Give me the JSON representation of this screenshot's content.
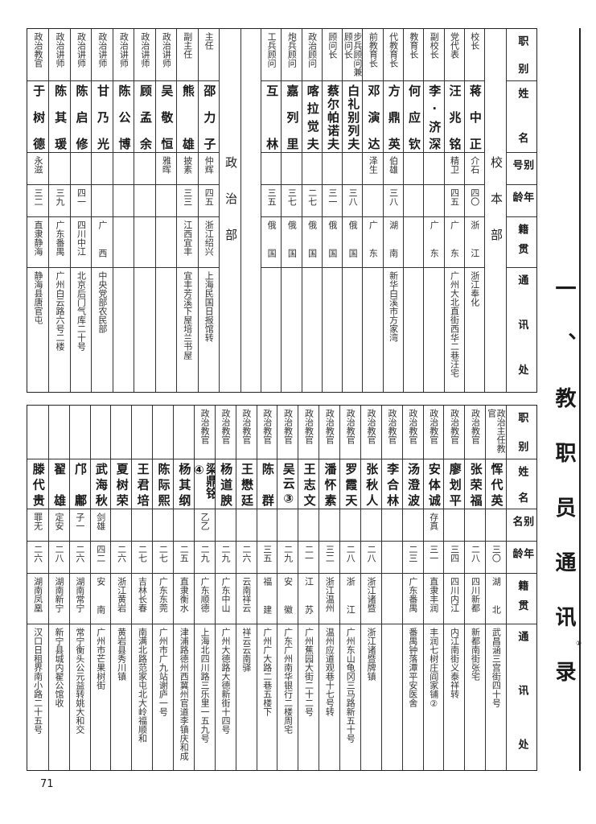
{
  "title": "一、教职员通讯录",
  "title_footnote": "①",
  "page_number": "71",
  "top_table": {
    "headers": [
      "职别",
      "姓名",
      "别号",
      "年龄",
      "籍贯",
      "通讯处"
    ],
    "sections": [
      {
        "label": "校本部",
        "columns": [
          {
            "role": "校长",
            "name": "蒋中正",
            "alias": "介石",
            "age": "四〇",
            "native": "浙江",
            "address": "浙江奉化"
          },
          {
            "role": "党代表",
            "name": "汪兆铭",
            "alias": "精卫",
            "age": "四五",
            "native": "广东",
            "address": "广州大北直街西华二巷汪宅"
          },
          {
            "role": "副校长",
            "name": "李·济深",
            "alias": "",
            "age": "",
            "native": "广东",
            "address": ""
          },
          {
            "role": "教育长",
            "name": "何应钦",
            "alias": "",
            "age": "",
            "native": "",
            "address": ""
          },
          {
            "role": "代教育长",
            "name": "方鼎英",
            "alias": "伯雄",
            "age": "三八",
            "native": "湖南",
            "address": "新华白溪市方家湾"
          },
          {
            "role": "前教育长",
            "name": "邓演达",
            "alias": "泽生",
            "age": "",
            "native": "广东",
            "address": ""
          },
          {
            "role": "步兵顾问兼顾问长",
            "name": "白礼别列夫",
            "alias": "",
            "age": "三八",
            "native": "俄国",
            "address": ""
          },
          {
            "role": "顾问长",
            "name": "蔡尔帕诺夫",
            "alias": "",
            "age": "三一",
            "native": "俄国",
            "address": ""
          },
          {
            "role": "政治顾问",
            "name": "喀拉觉夫",
            "alias": "",
            "age": "二七",
            "native": "俄国",
            "address": ""
          },
          {
            "role": "炮兵顾问",
            "name": "嘉列里",
            "alias": "",
            "age": "三七",
            "native": "俄国",
            "address": ""
          },
          {
            "role": "工兵顾问",
            "name": "互林",
            "alias": "",
            "age": "三五",
            "native": "俄国",
            "address": ""
          }
        ]
      },
      {
        "label": "政治部",
        "columns": [
          {
            "role": "主任",
            "name": "邵力子",
            "alias": "仲辉",
            "age": "四五",
            "native": "浙江绍兴",
            "address": "上海民国日报馆转"
          },
          {
            "role": "副主任",
            "name": "熊雄",
            "alias": "披素",
            "age": "三三",
            "native": "江西宜丰",
            "address": "宜丰芳溪下屋培兰书屋"
          },
          {
            "role": "政治讲师",
            "name": "吴敬恒",
            "alias": "雅晖",
            "age": "",
            "native": "",
            "address": ""
          },
          {
            "role": "政治讲师",
            "name": "顾孟余",
            "alias": "",
            "age": "",
            "native": "",
            "address": ""
          },
          {
            "role": "政治讲师",
            "name": "陈公博",
            "alias": "",
            "age": "",
            "native": "",
            "address": ""
          },
          {
            "role": "政治讲师",
            "name": "甘乃光",
            "alias": "",
            "age": "",
            "native": "广西",
            "address": "中央党部农民部"
          },
          {
            "role": "政治讲师",
            "name": "陈启修",
            "alias": "",
            "age": "四一",
            "native": "四川中江",
            "address": "北京后门气库二十号"
          },
          {
            "role": "政治讲师",
            "name": "陈其瑗",
            "alias": "",
            "age": "三九",
            "native": "广东番禺",
            "address": "广州白云路六号二楼"
          },
          {
            "role": "政治教官",
            "name": "于树德",
            "alias": "永滋",
            "age": "三二",
            "native": "直隶静海",
            "address": "静海县唐官屯"
          }
        ]
      }
    ]
  },
  "bottom_table": {
    "headers": [
      "职别",
      "姓名",
      "别名",
      "年龄",
      "籍贯",
      "通讯处"
    ],
    "columns": [
      {
        "role": "政治主任教官",
        "name": "恽代英",
        "alias": "",
        "age": "三〇",
        "native": "湖北",
        "address": "武昌涵三宫街四十号"
      },
      {
        "role": "政治教官",
        "name": "张荣福",
        "alias": "",
        "age": "二八",
        "native": "四川新都",
        "address": "新都南街张宅"
      },
      {
        "role": "政治教官",
        "name": "廖划平",
        "alias": "",
        "age": "三四",
        "native": "四川内江",
        "address": "内江南街义泰祥转"
      },
      {
        "role": "政治教官",
        "name": "安体诚",
        "alias": "存真",
        "age": "三一",
        "native": "直隶丰润",
        "address": "丰润七树庄阎家铺②"
      },
      {
        "role": "政治教官",
        "name": "汤澄波",
        "alias": "",
        "age": "二三",
        "native": "广东番禺",
        "address": "番禺钟落潭平安医舍"
      },
      {
        "role": "政治教官",
        "name": "李合林",
        "alias": "",
        "age": "",
        "native": "",
        "address": ""
      },
      {
        "role": "政治教官",
        "name": "张秋人",
        "alias": "",
        "age": "二八",
        "native": "浙江诸暨",
        "address": "浙江诸暨牌镇"
      },
      {
        "role": "政治教官",
        "name": "罗霞天",
        "alias": "",
        "age": "二八",
        "native": "浙江",
        "address": "广州东山龟冈三马路新五十号"
      },
      {
        "role": "政治教官",
        "name": "潘怀素",
        "alias": "",
        "age": "三二",
        "native": "浙江温州",
        "address": "温州应道观巷十七号转"
      },
      {
        "role": "政治教官",
        "name": "王志文",
        "alias": "",
        "age": "二一",
        "native": "江苏",
        "address": "广州蕉园大街二十二号"
      },
      {
        "role": "政治教官",
        "name": "吴云③",
        "alias": "",
        "age": "二九",
        "native": "安徽",
        "address": "广东广州南华银行二楼周宅"
      },
      {
        "role": "政治教官",
        "name": "陈群",
        "alias": "",
        "age": "三五",
        "native": "福建",
        "address": "广州广大路二巷五楼下"
      },
      {
        "role": "政治教官",
        "name": "王懋廷",
        "alias": "",
        "age": "二六",
        "native": "云南祥云",
        "address": "祥云云南驿"
      },
      {
        "role": "政治教官",
        "name": "杨道腴",
        "alias": "",
        "age": "二九",
        "native": "广东中山",
        "address": "广州大德路大德新街十四号"
      },
      {
        "role": "政治教官",
        "name": "梁鼎铭④",
        "alias": "乙乙",
        "age": "二九",
        "native": "广东顺德",
        "address": "上海北四川路三乐里一五九号"
      },
      {
        "role": "",
        "name": "杨其纲",
        "alias": "",
        "age": "二五",
        "native": "直隶衡水",
        "address": "津浦路德州西冀州官道李镇庆和成"
      },
      {
        "role": "",
        "name": "陈际熙",
        "alias": "",
        "age": "二七",
        "native": "广东东莞",
        "address": "广州市广九站谢庐一号"
      },
      {
        "role": "",
        "name": "王君培",
        "alias": "",
        "age": "二七",
        "native": "吉林长春",
        "address": "南满北路范家屯北大岭福顺和"
      },
      {
        "role": "",
        "name": "夏树荣",
        "alias": "",
        "age": "二六",
        "native": "浙江黄岩",
        "address": "黄岩县秀川镇"
      },
      {
        "role": "",
        "name": "武海秋",
        "alias": "剑雄",
        "age": "四二",
        "native": "安南",
        "address": "广州市芒果树街"
      },
      {
        "role": "",
        "name": "邝鄘",
        "alias": "子一",
        "age": "二六",
        "native": "湖南常宁",
        "address": "常宁衡头公元益转姚大和交"
      },
      {
        "role": "",
        "name": "翟雄",
        "alias": "定安",
        "age": "二八",
        "native": "湖南新宁",
        "address": "新宁县城内翟公馆收"
      },
      {
        "role": "",
        "name": "滕代贵",
        "alias": "罪无",
        "age": "二六",
        "native": "湖南凤凰",
        "address": "汉口日租界南小路二十五号"
      }
    ]
  }
}
